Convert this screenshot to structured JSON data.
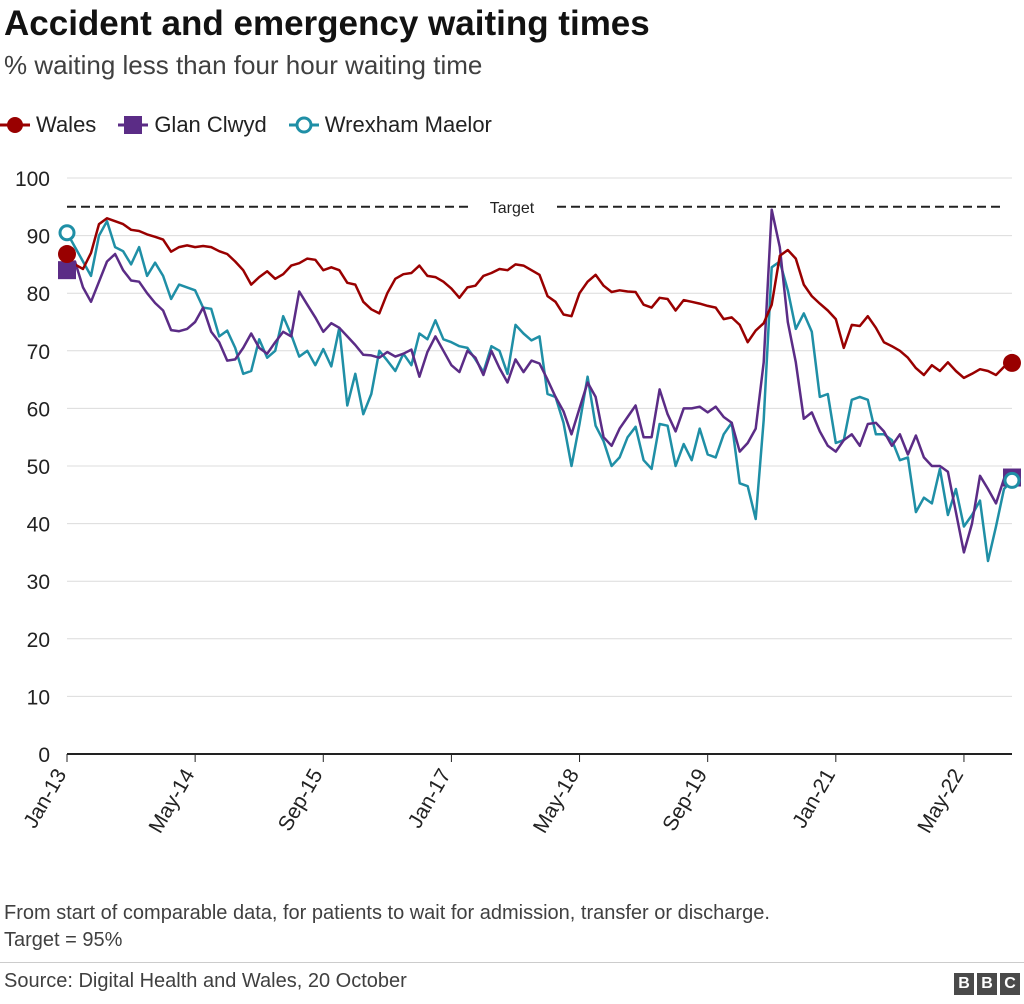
{
  "header": {
    "title": "Accident and emergency waiting times",
    "subtitle": "% waiting less than four hour waiting time"
  },
  "legend": [
    {
      "label": "Wales",
      "color": "#990000",
      "marker": "circle"
    },
    {
      "label": "Glan Clwyd",
      "color": "#5b2c86",
      "marker": "square"
    },
    {
      "label": "Wrexham Maelor",
      "color": "#1f8fa6",
      "marker": "open-circle"
    }
  ],
  "footer": {
    "note_line1": "From start of comparable data, for patients to wait for admission, transfer or discharge.",
    "note_line2": "Target = 95%",
    "source": "Source: Digital Health and Wales, 20 October",
    "logo": [
      "B",
      "B",
      "C"
    ]
  },
  "chart_data": {
    "type": "line",
    "title": "Accident and emergency waiting times",
    "subtitle": "% waiting less than four hour waiting time",
    "xlabel": "",
    "ylabel": "",
    "ylim": [
      0,
      100
    ],
    "yticks": [
      0,
      10,
      20,
      30,
      40,
      50,
      60,
      70,
      80,
      90,
      100
    ],
    "grid": true,
    "legend_position": "top-left",
    "x_start": "Jan-13",
    "x_end": "Aug-22",
    "xtick_labels": [
      "Jan-13",
      "May-14",
      "Sep-15",
      "Jan-17",
      "May-18",
      "Sep-19",
      "Jan-21",
      "May-22"
    ],
    "target_line": {
      "value": 95,
      "label": "Target"
    },
    "series": [
      {
        "name": "Wales",
        "color": "#990000",
        "values": [
          86.8,
          85.0,
          84.2,
          87.0,
          92.0,
          93.0,
          92.5,
          92.0,
          91.0,
          90.8,
          90.2,
          89.8,
          89.3,
          87.2,
          88.0,
          88.3,
          88.0,
          88.2,
          88.0,
          87.3,
          86.8,
          85.5,
          84.0,
          81.5,
          82.8,
          83.8,
          82.5,
          83.3,
          84.8,
          85.2,
          86.0,
          85.8,
          84.0,
          84.5,
          84.0,
          81.8,
          81.5,
          78.5,
          77.2,
          76.5,
          80.0,
          82.5,
          83.3,
          83.5,
          84.8,
          83.0,
          82.8,
          82.0,
          80.8,
          79.2,
          81.0,
          81.3,
          83.0,
          83.5,
          84.2,
          84.0,
          85.0,
          84.8,
          84.0,
          83.2,
          79.5,
          78.5,
          76.3,
          76.0,
          80.0,
          82.0,
          83.2,
          81.3,
          80.2,
          80.5,
          80.3,
          80.2,
          78.0,
          77.5,
          79.2,
          79.0,
          77.0,
          78.8,
          78.5,
          78.2,
          77.8,
          77.5,
          75.5,
          75.8,
          74.5,
          71.5,
          73.5,
          74.8,
          78.0,
          86.5,
          87.5,
          86.0,
          81.5,
          79.5,
          78.2,
          77.0,
          75.5,
          70.5,
          74.5,
          74.3,
          76.0,
          74.0,
          71.5,
          70.8,
          70.0,
          68.8,
          67.0,
          65.8,
          67.5,
          66.5,
          68.0,
          66.5,
          65.3,
          66.0,
          66.8,
          66.5,
          65.8,
          67.2,
          67.9
        ]
      },
      {
        "name": "Glan Clwyd",
        "color": "#5b2c86",
        "values": [
          84.0,
          85.5,
          81.0,
          78.5,
          82.0,
          85.5,
          86.8,
          84.0,
          82.2,
          82.0,
          80.0,
          78.3,
          77.0,
          73.6,
          73.4,
          73.8,
          75.0,
          77.5,
          73.3,
          71.5,
          68.3,
          68.5,
          70.5,
          73.0,
          70.5,
          69.5,
          71.5,
          73.3,
          72.5,
          80.3,
          78.0,
          75.8,
          73.3,
          74.8,
          74.0,
          72.5,
          71.0,
          69.3,
          69.2,
          68.8,
          69.8,
          69.0,
          69.5,
          70.2,
          65.5,
          69.8,
          72.5,
          70.0,
          67.5,
          66.3,
          70.0,
          68.8,
          65.8,
          70.0,
          67.0,
          64.5,
          68.5,
          66.3,
          68.3,
          67.8,
          65.0,
          62.0,
          59.5,
          55.5,
          60.0,
          64.5,
          62.0,
          55.0,
          53.5,
          56.5,
          58.5,
          60.5,
          55.0,
          55.0,
          63.3,
          59.0,
          56.0,
          60.0,
          60.0,
          60.3,
          59.3,
          60.3,
          58.5,
          57.5,
          52.5,
          54.0,
          56.5,
          68.0,
          94.5,
          88.0,
          75.0,
          68.0,
          58.2,
          59.3,
          56.0,
          53.5,
          52.5,
          54.5,
          55.5,
          53.5,
          57.3,
          57.5,
          56.0,
          53.5,
          55.5,
          52.0,
          55.3,
          51.5,
          50.0,
          50.0,
          49.0,
          42.0,
          35.0,
          40.0,
          48.3,
          46.0,
          43.5,
          47.8,
          48.0
        ]
      },
      {
        "name": "Wrexham Maelor",
        "color": "#1f8fa6",
        "values": [
          90.5,
          88.0,
          85.5,
          83.0,
          90.0,
          92.5,
          88.0,
          87.3,
          85.0,
          88.0,
          83.0,
          85.3,
          83.0,
          79.0,
          81.5,
          81.0,
          80.5,
          77.5,
          77.3,
          72.5,
          73.5,
          70.5,
          66.0,
          66.5,
          72.0,
          68.8,
          70.0,
          76.0,
          72.8,
          69.0,
          70.0,
          67.5,
          70.3,
          67.3,
          74.0,
          60.5,
          66.0,
          59.0,
          62.5,
          70.0,
          68.3,
          66.5,
          69.5,
          67.5,
          73.0,
          72.0,
          75.3,
          72.0,
          71.5,
          70.8,
          70.5,
          68.5,
          66.3,
          70.8,
          70.0,
          66.0,
          74.5,
          73.0,
          71.8,
          72.5,
          62.5,
          62.0,
          57.5,
          50.0,
          57.3,
          65.5,
          57.0,
          54.3,
          50.0,
          51.5,
          55.0,
          56.8,
          51.0,
          49.5,
          57.3,
          57.0,
          50.0,
          53.8,
          51.0,
          56.5,
          52.0,
          51.5,
          55.5,
          57.5,
          47.0,
          46.5,
          40.8,
          58.0,
          84.5,
          85.5,
          80.5,
          73.8,
          76.5,
          73.3,
          62.0,
          62.5,
          54.0,
          54.5,
          61.5,
          62.0,
          61.5,
          55.5,
          55.5,
          54.5,
          51.0,
          51.5,
          42.0,
          44.5,
          43.5,
          49.5,
          41.5,
          46.0,
          39.5,
          41.5,
          44.0,
          33.5,
          39.5,
          46.0,
          47.5
        ]
      }
    ]
  }
}
